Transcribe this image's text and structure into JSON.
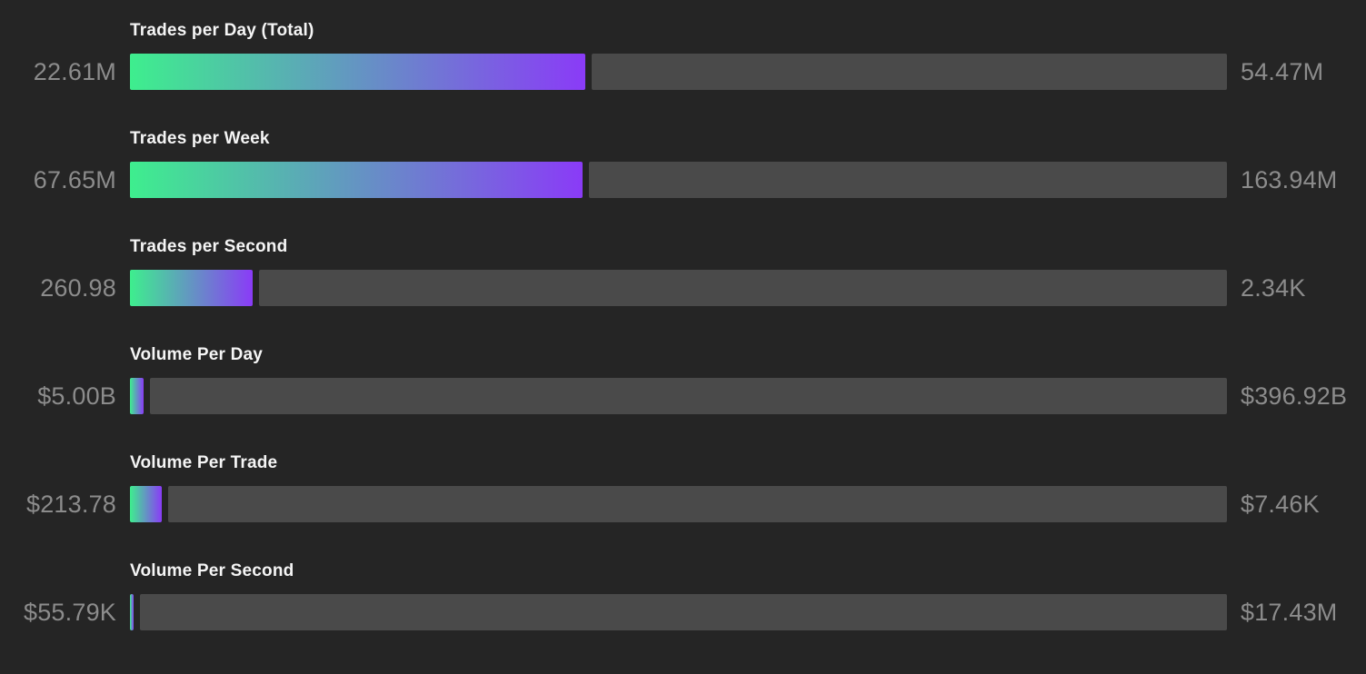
{
  "colors": {
    "background": "#252525",
    "track": "#4A4A4A",
    "gradient_start": "#3EEE8E",
    "gradient_end": "#8A3BF7",
    "title_text": "#F5F5F5",
    "value_text": "#8C8C8C"
  },
  "chart_data": {
    "type": "bar",
    "orientation": "horizontal",
    "description": "Gauge bars showing current value relative to maximum; fill fraction = value / max",
    "bars": [
      {
        "label": "Trades per Day (Total)",
        "value_display": "22.61M",
        "max_display": "54.47M",
        "value": 22610000,
        "max": 54470000
      },
      {
        "label": "Trades per Week",
        "value_display": "67.65M",
        "max_display": "163.94M",
        "value": 67650000,
        "max": 163940000
      },
      {
        "label": "Trades per Second",
        "value_display": "260.98",
        "max_display": "2.34K",
        "value": 260.98,
        "max": 2340
      },
      {
        "label": "Volume Per Day",
        "value_display": "$5.00B",
        "max_display": "$396.92B",
        "value": 5000000000,
        "max": 396920000000
      },
      {
        "label": "Volume Per Trade",
        "value_display": "$213.78",
        "max_display": "$7.46K",
        "value": 213.78,
        "max": 7460
      },
      {
        "label": "Volume Per Second",
        "value_display": "$55.79K",
        "max_display": "$17.43M",
        "value": 55790,
        "max": 17430000
      }
    ]
  }
}
